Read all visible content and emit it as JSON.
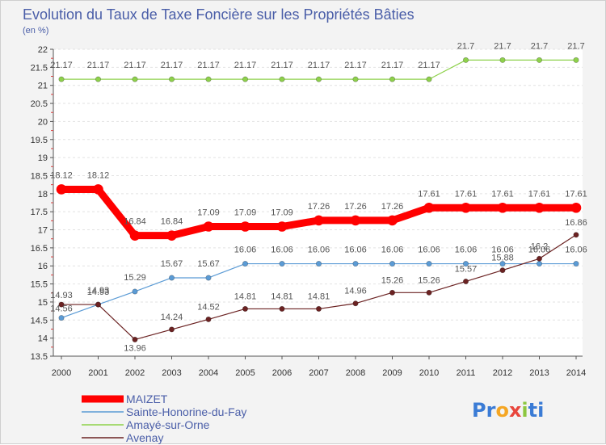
{
  "chart_data": {
    "type": "line",
    "title": "Evolution du Taux de Taxe Foncière sur les Propriétés Bâties",
    "subtitle": "(en %)",
    "xlabel": "",
    "ylabel": "",
    "categories": [
      "2000",
      "2001",
      "2002",
      "2003",
      "2004",
      "2005",
      "2006",
      "2007",
      "2008",
      "2009",
      "2010",
      "2011",
      "2012",
      "2013",
      "2014"
    ],
    "ylim": [
      13.5,
      22
    ],
    "yticks": [
      "13.5",
      "14",
      "14.5",
      "15",
      "15.5",
      "16",
      "16.5",
      "17",
      "17.5",
      "18",
      "18.5",
      "19",
      "19.5",
      "20",
      "20.5",
      "21",
      "21.5",
      "22"
    ],
    "grid": true,
    "series": [
      {
        "name": "MAIZET",
        "color": "#ff0000",
        "values": [
          18.12,
          18.12,
          16.84,
          16.84,
          17.09,
          17.09,
          17.09,
          17.26,
          17.26,
          17.26,
          17.61,
          17.61,
          17.61,
          17.61,
          17.61
        ],
        "labels": [
          "18.12",
          "18.12",
          "16.84",
          "16.84",
          "17.09",
          "17.09",
          "17.09",
          "17.26",
          "17.26",
          "17.26",
          "17.61",
          "17.61",
          "17.61",
          "17.61",
          "17.61"
        ]
      },
      {
        "name": "Sainte-Honorine-du-Fay",
        "color": "#5b9bd5",
        "values": [
          14.56,
          14.93,
          15.29,
          15.67,
          15.67,
          16.06,
          16.06,
          16.06,
          16.06,
          16.06,
          16.06,
          16.06,
          16.06,
          16.06,
          16.06
        ],
        "labels": [
          "14.56",
          "14.93",
          "15.29",
          "15.67",
          "15.67",
          "16.06",
          "16.06",
          "16.06",
          "16.06",
          "16.06",
          "16.06",
          "16.06",
          "16.06",
          "16.06",
          "16.06"
        ]
      },
      {
        "name": "Amayé-sur-Orne",
        "color": "#8ed14b",
        "values": [
          21.17,
          21.17,
          21.17,
          21.17,
          21.17,
          21.17,
          21.17,
          21.17,
          21.17,
          21.17,
          21.17,
          21.7,
          21.7,
          21.7,
          21.7
        ],
        "labels": [
          "21.17",
          "21.17",
          "21.17",
          "21.17",
          "21.17",
          "21.17",
          "21.17",
          "21.17",
          "21.17",
          "21.17",
          "21.17",
          "21.7",
          "21.7",
          "21.7",
          "21.7"
        ]
      },
      {
        "name": "Avenay",
        "color": "#6b2222",
        "values": [
          14.93,
          14.93,
          13.96,
          14.24,
          14.52,
          14.81,
          14.81,
          14.81,
          14.96,
          15.26,
          15.26,
          15.57,
          15.88,
          16.2,
          16.86
        ],
        "labels": [
          "14.93",
          "14.93",
          "13.96",
          "14.24",
          "14.52",
          "14.81",
          "14.81",
          "14.81",
          "14.96",
          "15.26",
          "15.26",
          "15.57",
          "15.88",
          "16.2",
          "16.86"
        ]
      }
    ]
  },
  "branding": {
    "logo_parts": [
      "Pr",
      "o",
      "x",
      "i",
      "ti"
    ],
    "logo_colors": [
      "#3a7bd5",
      "#f5a623",
      "#e8453c",
      "#8cc63f",
      "#3a7bd5"
    ]
  }
}
